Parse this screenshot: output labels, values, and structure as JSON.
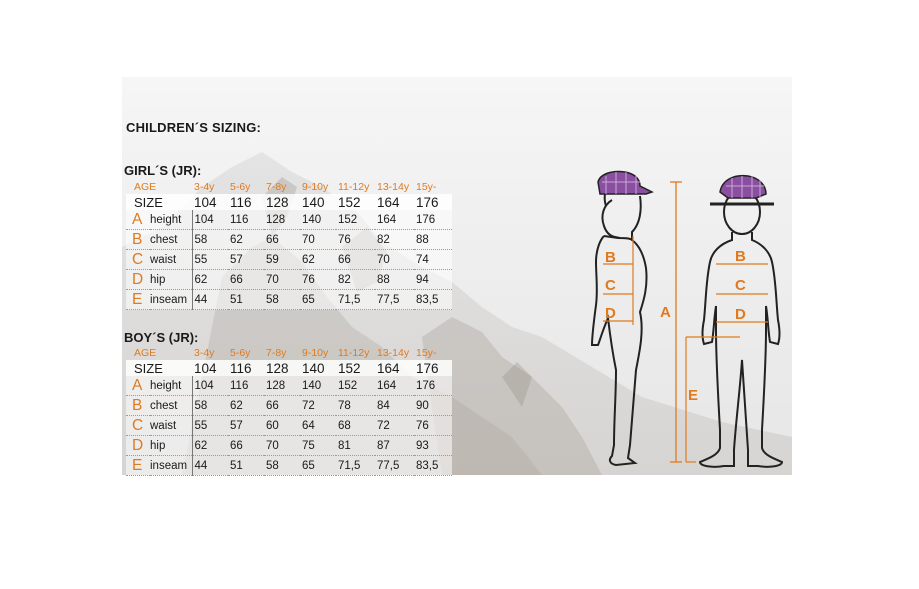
{
  "title": "CHILDREN´S SIZING:",
  "girls": {
    "title": "GIRL´S (JR):",
    "age_label": "AGE",
    "size_label": "SIZE",
    "ages": [
      "3-4y",
      "5-6y",
      "7-8y",
      "9-10y",
      "11-12y",
      "13-14y",
      "15y-"
    ],
    "sizes": [
      "104",
      "116",
      "128",
      "140",
      "152",
      "164",
      "176"
    ],
    "rows": [
      {
        "letter": "A",
        "label": "height",
        "values": [
          "104",
          "116",
          "128",
          "140",
          "152",
          "164",
          "176"
        ]
      },
      {
        "letter": "B",
        "label": "chest",
        "values": [
          "58",
          "62",
          "66",
          "70",
          "76",
          "82",
          "88"
        ]
      },
      {
        "letter": "C",
        "label": "waist",
        "values": [
          "55",
          "57",
          "59",
          "62",
          "66",
          "70",
          "74"
        ]
      },
      {
        "letter": "D",
        "label": "hip",
        "values": [
          "62",
          "66",
          "70",
          "76",
          "82",
          "88",
          "94"
        ]
      },
      {
        "letter": "E",
        "label": "inseam",
        "values": [
          "44",
          "51",
          "58",
          "65",
          "71,5",
          "77,5",
          "83,5"
        ]
      }
    ]
  },
  "boys": {
    "title": "BOY´S (JR):",
    "age_label": "AGE",
    "size_label": "SIZE",
    "ages": [
      "3-4y",
      "5-6y",
      "7-8y",
      "9-10y",
      "11-12y",
      "13-14y",
      "15y-"
    ],
    "sizes": [
      "104",
      "116",
      "128",
      "140",
      "152",
      "164",
      "176"
    ],
    "rows": [
      {
        "letter": "A",
        "label": "height",
        "values": [
          "104",
          "116",
          "128",
          "140",
          "152",
          "164",
          "176"
        ]
      },
      {
        "letter": "B",
        "label": "chest",
        "values": [
          "58",
          "62",
          "66",
          "72",
          "78",
          "84",
          "90"
        ]
      },
      {
        "letter": "C",
        "label": "waist",
        "values": [
          "55",
          "57",
          "60",
          "64",
          "68",
          "72",
          "76"
        ]
      },
      {
        "letter": "D",
        "label": "hip",
        "values": [
          "62",
          "66",
          "70",
          "75",
          "81",
          "87",
          "93"
        ]
      },
      {
        "letter": "E",
        "label": "inseam",
        "values": [
          "44",
          "51",
          "58",
          "65",
          "71,5",
          "77,5",
          "83,5"
        ]
      }
    ]
  },
  "diagram": {
    "side_labels": [
      "B",
      "C",
      "D"
    ],
    "front_labels": [
      "B",
      "C",
      "D"
    ],
    "height_label": "A",
    "inseam_label": "E"
  },
  "colors": {
    "accent": "#e07a1f",
    "cap": "#8a4fa0"
  }
}
